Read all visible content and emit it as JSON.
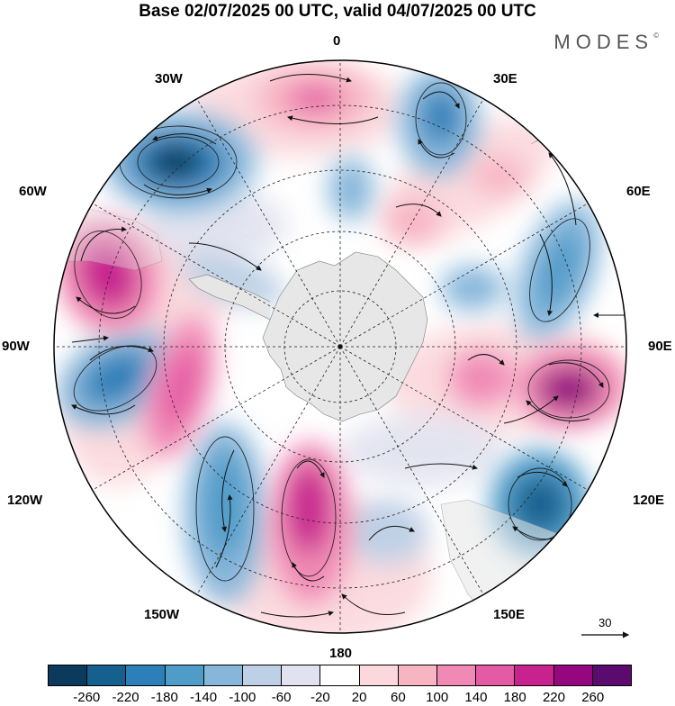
{
  "title": "Base 02/07/2025 00 UTC, valid 04/07/2025 00 UTC",
  "brand": "MODES",
  "brand_mark": "©",
  "longitude_labels": {
    "top": "0",
    "upper_left": "30W",
    "upper_right": "30E",
    "mid_upper_left": "60W",
    "mid_upper_right": "60E",
    "left": "90W",
    "right": "90E",
    "mid_lower_left": "120W",
    "mid_lower_right": "120E",
    "lower_left": "150W",
    "lower_right": "150E",
    "bottom": "180"
  },
  "reference_vector": {
    "label": "30",
    "icon": "arrow-right-icon"
  },
  "colorbar": {
    "colors": [
      "#0b3a5c",
      "#15608f",
      "#2c7fb8",
      "#4f9cc9",
      "#86b6da",
      "#bdd0e6",
      "#e1e2ef",
      "#ffffff",
      "#fbd8dc",
      "#f7b4c2",
      "#f08ab4",
      "#e55aa4",
      "#c8228f",
      "#96077f",
      "#5b0a6e"
    ],
    "ticks": [
      "-260",
      "-220",
      "-180",
      "-140",
      "-100",
      "-60",
      "-20",
      "20",
      "60",
      "100",
      "140",
      "180",
      "220",
      "260"
    ]
  },
  "map": {
    "projection": "south-polar-stereographic",
    "land_color": "#e6e6e6"
  }
}
